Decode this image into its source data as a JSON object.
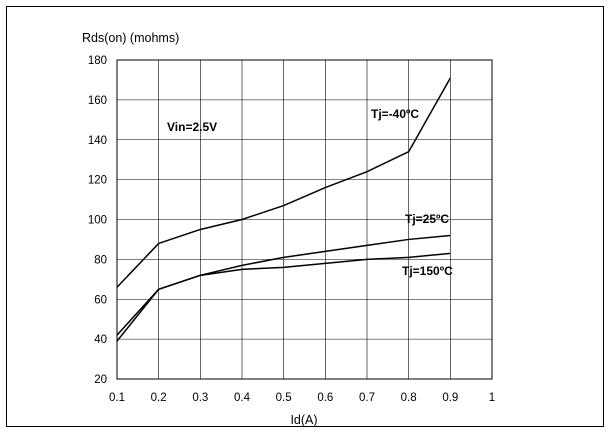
{
  "chart_data": {
    "type": "line",
    "title": "",
    "ylabel": "Rds(on) (mohms)",
    "xlabel": "Id(A)",
    "xlim": [
      0.1,
      1.0
    ],
    "ylim": [
      20,
      180
    ],
    "grid": true,
    "x_ticks": [
      "0.1",
      "0.2",
      "0.3",
      "0.4",
      "0.5",
      "0.6",
      "0.7",
      "0.8",
      "0.9",
      "1"
    ],
    "y_ticks": [
      "20",
      "40",
      "60",
      "80",
      "100",
      "120",
      "140",
      "160",
      "180"
    ],
    "annotations": [
      "Vin=2.5V"
    ],
    "x": [
      0.1,
      0.2,
      0.3,
      0.4,
      0.5,
      0.6,
      0.7,
      0.8,
      0.9
    ],
    "series": [
      {
        "name": "Tj=-40ºC",
        "values": [
          66,
          88,
          95,
          100,
          107,
          116,
          124,
          134,
          171
        ]
      },
      {
        "name": "Tj=25ºC",
        "values": [
          42,
          65,
          72,
          77,
          81,
          84,
          87,
          90,
          92
        ]
      },
      {
        "name": "Tj=150ºC",
        "values": [
          39,
          65,
          72,
          75,
          76,
          78,
          80,
          81,
          83
        ]
      }
    ]
  }
}
